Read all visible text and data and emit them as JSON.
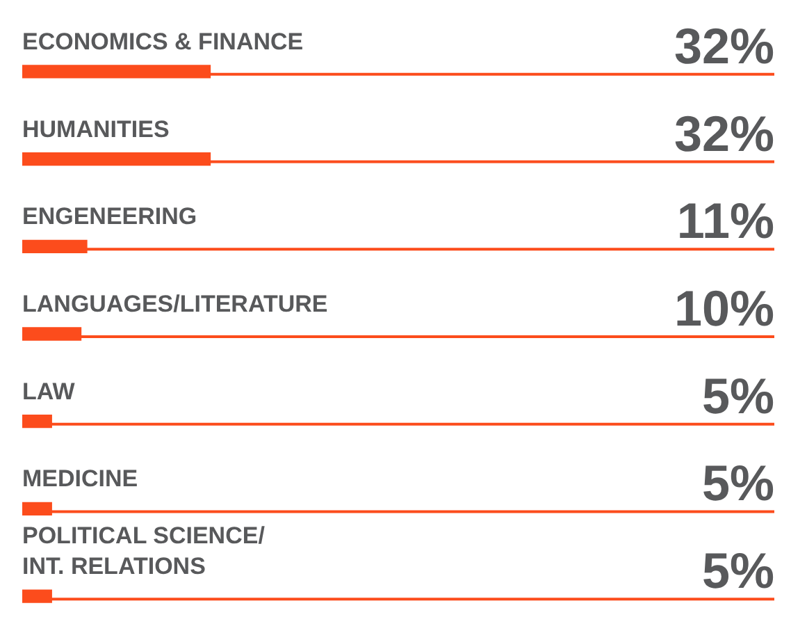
{
  "chart_data": {
    "type": "bar",
    "orientation": "horizontal",
    "categories": [
      "ECONOMICS & FINANCE",
      "HUMANITIES",
      "ENGENEERING",
      "LANGUAGES/LITERATURE",
      "LAW",
      "MEDICINE",
      "POLITICAL SCIENCE/\nINT. RELATIONS"
    ],
    "values": [
      32,
      32,
      11,
      10,
      5,
      5,
      5
    ],
    "value_labels": [
      "32%",
      "32%",
      "11%",
      "10%",
      "5%",
      "5%",
      "5%"
    ],
    "color": "#fc4c1c",
    "xlim": [
      0,
      128
    ],
    "tick_labels": false
  }
}
